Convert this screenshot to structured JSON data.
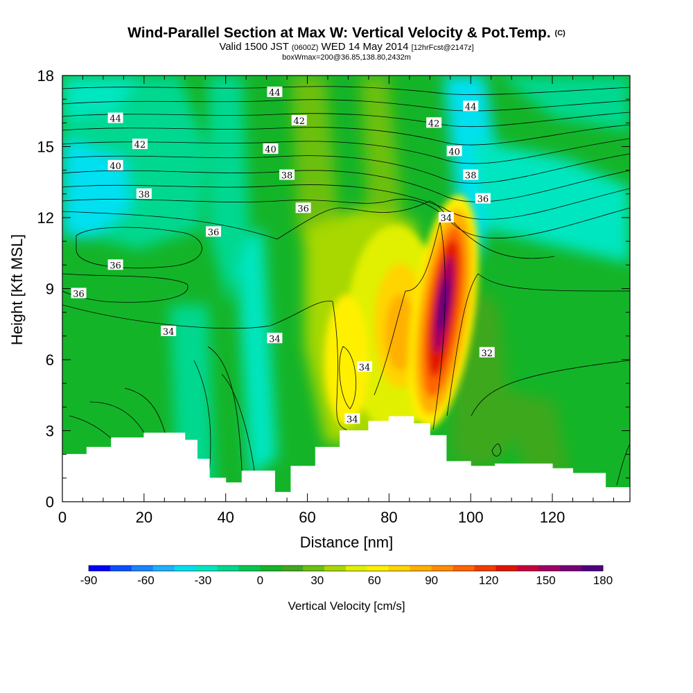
{
  "title": {
    "main": "Wind-Parallel Section at Max W: Vertical Velocity & Pot.Temp.",
    "copyright": "(C)",
    "valid_prefix": "Valid 1500 JST",
    "valid_utc": "(0600Z)",
    "valid_date": "WED 14 May 2014",
    "forecast": "[12hrFcst@2147z]",
    "box": "boxWmax=200@36.85,138.80,2432m"
  },
  "chart_data": {
    "type": "heatmap",
    "xlabel": "Distance [nm]",
    "ylabel": "Height [Kft MSL]",
    "xlim": [
      0,
      139
    ],
    "ylim": [
      0,
      18
    ],
    "x_ticks": [
      "0",
      "20",
      "40",
      "60",
      "80",
      "100",
      "120"
    ],
    "y_ticks": [
      "0",
      "3",
      "6",
      "9",
      "12",
      "15",
      "18"
    ],
    "colorbar": {
      "label": "Vertical Velocity [cm/s]",
      "min": -90,
      "max": 180,
      "step": 10,
      "tick_labels": [
        "-90",
        "-60",
        "-30",
        "0",
        "30",
        "60",
        "90",
        "120",
        "150",
        "180"
      ],
      "colors": [
        "#0000ff",
        "#0a4fff",
        "#1a84ff",
        "#1fb0ff",
        "#00e0f0",
        "#00e6c0",
        "#00d890",
        "#00c850",
        "#14b428",
        "#3ea81a",
        "#6cc010",
        "#a8d800",
        "#e0f000",
        "#fff000",
        "#ffd400",
        "#ffb000",
        "#ff8c00",
        "#ff6400",
        "#f03c00",
        "#e01400",
        "#c8003c",
        "#a00064",
        "#780078",
        "#500080"
      ]
    },
    "terrain_kft": [
      [
        0,
        2.0
      ],
      [
        6,
        2.3
      ],
      [
        12,
        2.7
      ],
      [
        20,
        2.9
      ],
      [
        26,
        2.9
      ],
      [
        30,
        2.6
      ],
      [
        33,
        1.8
      ],
      [
        36,
        1.0
      ],
      [
        40,
        0.8
      ],
      [
        44,
        1.3
      ],
      [
        48,
        1.3
      ],
      [
        52,
        0.4
      ],
      [
        56,
        1.5
      ],
      [
        62,
        2.3
      ],
      [
        68,
        3.0
      ],
      [
        75,
        3.4
      ],
      [
        80,
        3.6
      ],
      [
        86,
        3.3
      ],
      [
        90,
        2.8
      ],
      [
        94,
        1.7
      ],
      [
        100,
        1.5
      ],
      [
        106,
        1.6
      ],
      [
        120,
        1.4
      ],
      [
        125,
        1.2
      ],
      [
        133,
        0.6
      ],
      [
        139,
        0.6
      ]
    ],
    "contour_labels": [
      {
        "text": "44",
        "x": 13,
        "y": 16.2
      },
      {
        "text": "44",
        "x": 52,
        "y": 17.3
      },
      {
        "text": "44",
        "x": 100,
        "y": 16.7
      },
      {
        "text": "42",
        "x": 19,
        "y": 15.1
      },
      {
        "text": "42",
        "x": 58,
        "y": 16.1
      },
      {
        "text": "42",
        "x": 91,
        "y": 16.0
      },
      {
        "text": "40",
        "x": 13,
        "y": 14.2
      },
      {
        "text": "40",
        "x": 51,
        "y": 14.9
      },
      {
        "text": "40",
        "x": 96,
        "y": 14.8
      },
      {
        "text": "38",
        "x": 20,
        "y": 13.0
      },
      {
        "text": "38",
        "x": 55,
        "y": 13.8
      },
      {
        "text": "38",
        "x": 100,
        "y": 13.8
      },
      {
        "text": "36",
        "x": 37,
        "y": 11.4
      },
      {
        "text": "36",
        "x": 59,
        "y": 12.4
      },
      {
        "text": "36",
        "x": 103,
        "y": 12.8
      },
      {
        "text": "36",
        "x": 13,
        "y": 10.0
      },
      {
        "text": "36",
        "x": 4,
        "y": 8.8
      },
      {
        "text": "34",
        "x": 94,
        "y": 12.0
      },
      {
        "text": "34",
        "x": 26,
        "y": 7.2
      },
      {
        "text": "34",
        "x": 52,
        "y": 6.9
      },
      {
        "text": "34",
        "x": 74,
        "y": 5.7
      },
      {
        "text": "34",
        "x": 71,
        "y": 3.5
      },
      {
        "text": "32",
        "x": 104,
        "y": 6.3
      }
    ]
  }
}
